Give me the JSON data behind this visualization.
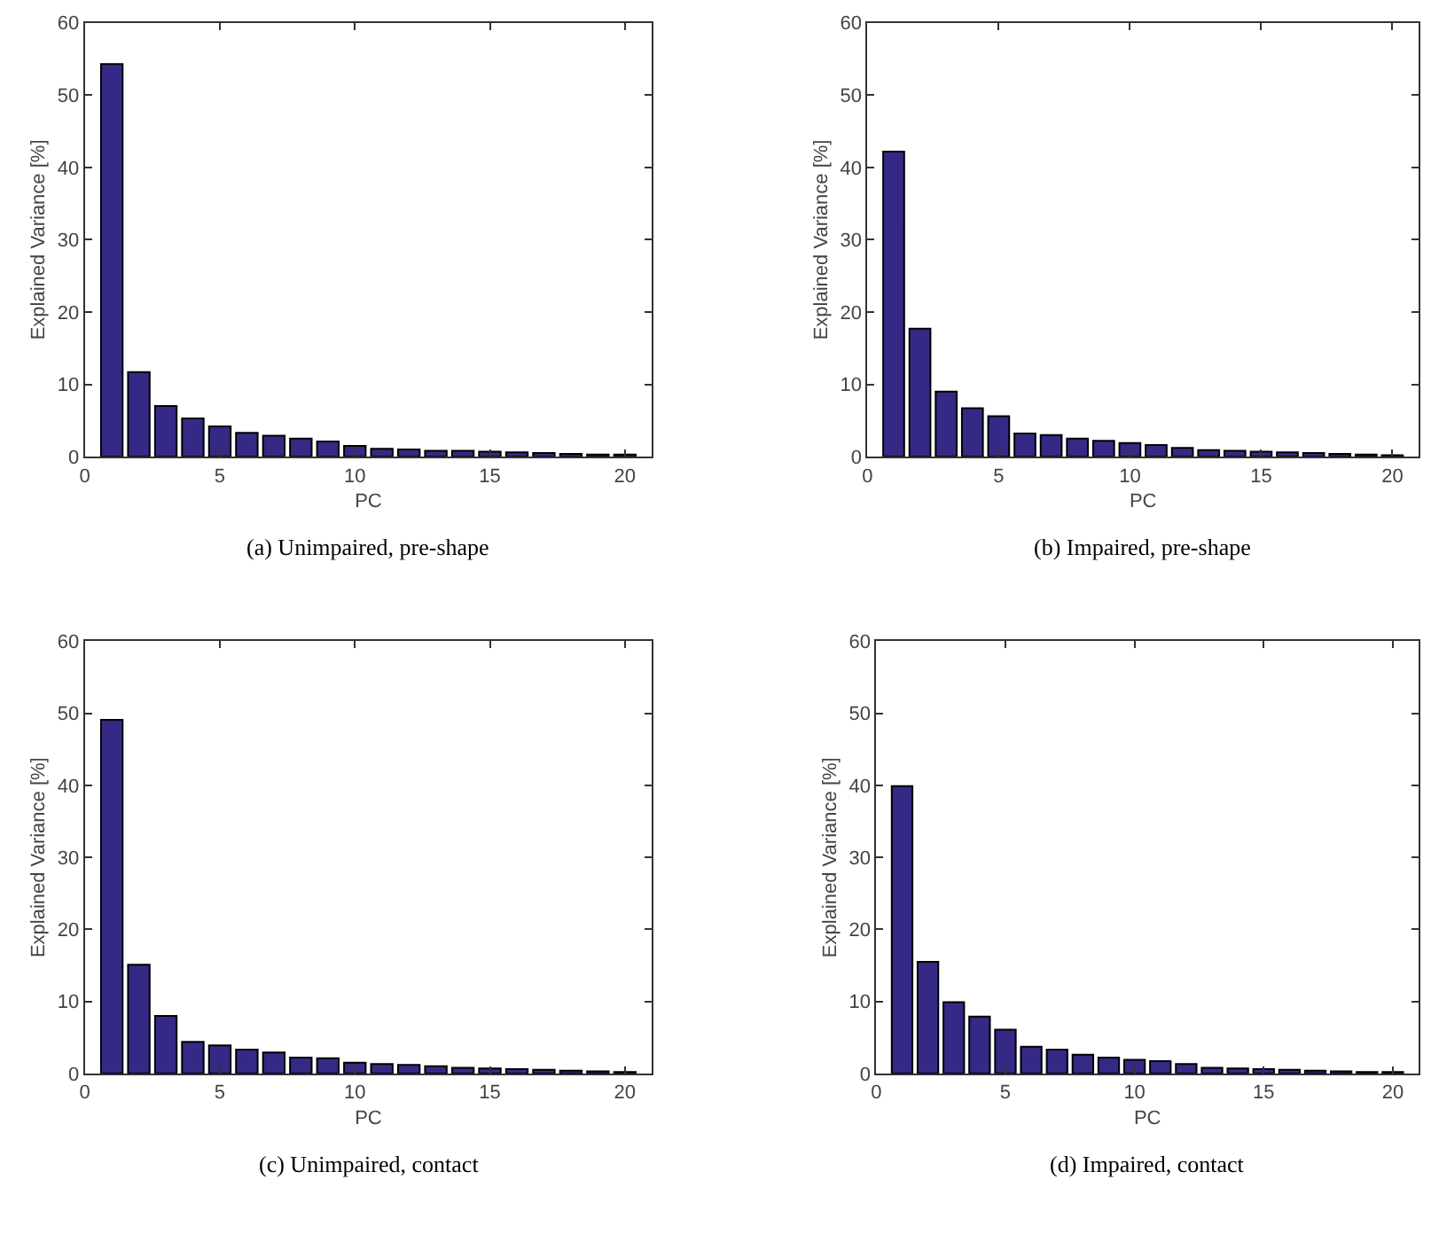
{
  "chart_data": [
    {
      "type": "bar",
      "title": "(a) Unimpaired, pre-shape",
      "xlabel": "PC",
      "ylabel": "Explained Variance [%]",
      "x": [
        1,
        2,
        3,
        4,
        5,
        6,
        7,
        8,
        9,
        10,
        11,
        12,
        13,
        14,
        15,
        16,
        17,
        18,
        19,
        20
      ],
      "color": "#342a85",
      "xlim": [
        0,
        21
      ],
      "xticks": [
        0,
        5,
        10,
        15,
        20
      ],
      "ylim": [
        0,
        60
      ],
      "yticks": [
        0,
        10,
        20,
        30,
        40,
        50,
        60
      ],
      "values": [
        54.3,
        11.7,
        7.0,
        5.3,
        4.2,
        3.3,
        2.9,
        2.5,
        2.1,
        1.5,
        1.1,
        1.0,
        0.8,
        0.8,
        0.7,
        0.6,
        0.5,
        0.4,
        0.3,
        0.3
      ]
    },
    {
      "type": "bar",
      "title": "(b) Impaired, pre-shape",
      "xlabel": "PC",
      "ylabel": "Explained Variance [%]",
      "x": [
        1,
        2,
        3,
        4,
        5,
        6,
        7,
        8,
        9,
        10,
        11,
        12,
        13,
        14,
        15,
        16,
        17,
        18,
        19,
        20
      ],
      "color": "#342a85",
      "xlim": [
        0,
        21
      ],
      "xticks": [
        0,
        5,
        10,
        15,
        20
      ],
      "ylim": [
        0,
        60
      ],
      "yticks": [
        0,
        10,
        20,
        30,
        40,
        50,
        60
      ],
      "values": [
        42.2,
        17.7,
        9.0,
        6.7,
        5.6,
        3.2,
        3.0,
        2.5,
        2.2,
        1.9,
        1.6,
        1.2,
        0.9,
        0.8,
        0.7,
        0.6,
        0.5,
        0.4,
        0.3,
        0.2
      ]
    },
    {
      "type": "bar",
      "title": "(c) Unimpaired, contact",
      "xlabel": "PC",
      "ylabel": "Explained Variance [%]",
      "x": [
        1,
        2,
        3,
        4,
        5,
        6,
        7,
        8,
        9,
        10,
        11,
        12,
        13,
        14,
        15,
        16,
        17,
        18,
        19,
        20
      ],
      "color": "#342a85",
      "xlim": [
        0,
        21
      ],
      "xticks": [
        0,
        5,
        10,
        15,
        20
      ],
      "ylim": [
        0,
        60
      ],
      "yticks": [
        0,
        10,
        20,
        30,
        40,
        50,
        60
      ],
      "values": [
        49.1,
        15.1,
        8.0,
        4.4,
        3.9,
        3.3,
        2.9,
        2.2,
        2.1,
        1.5,
        1.3,
        1.2,
        1.0,
        0.8,
        0.7,
        0.6,
        0.5,
        0.4,
        0.3,
        0.2
      ]
    },
    {
      "type": "bar",
      "title": "(d) Impaired, contact",
      "xlabel": "PC",
      "ylabel": "Explained Variance [%]",
      "x": [
        1,
        2,
        3,
        4,
        5,
        6,
        7,
        8,
        9,
        10,
        11,
        12,
        13,
        14,
        15,
        16,
        17,
        18,
        19,
        20
      ],
      "color": "#342a85",
      "xlim": [
        0,
        21
      ],
      "xticks": [
        0,
        5,
        10,
        15,
        20
      ],
      "ylim": [
        0,
        60
      ],
      "yticks": [
        0,
        10,
        20,
        30,
        40,
        50,
        60
      ],
      "values": [
        39.9,
        15.5,
        9.9,
        7.9,
        6.1,
        3.7,
        3.3,
        2.6,
        2.2,
        1.9,
        1.7,
        1.3,
        0.8,
        0.7,
        0.6,
        0.5,
        0.4,
        0.3,
        0.2,
        0.2
      ]
    }
  ]
}
